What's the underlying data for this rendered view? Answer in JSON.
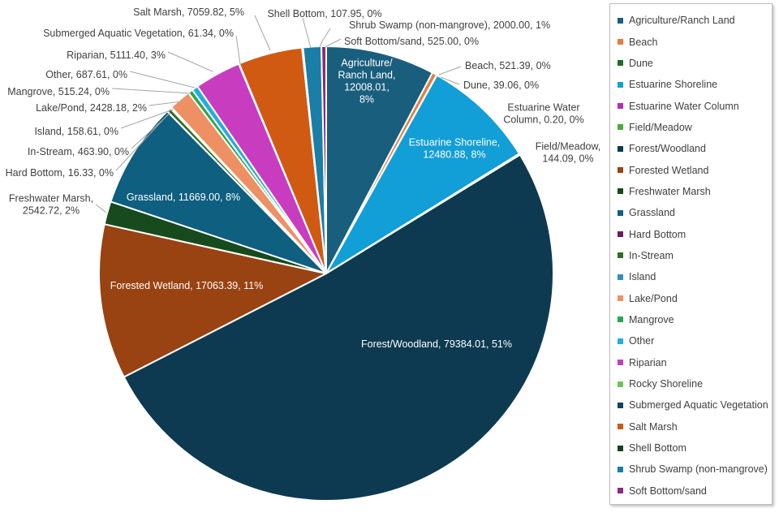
{
  "chart_data": {
    "type": "pie",
    "title": "",
    "legend_position": "right",
    "slices": [
      {
        "name": "Agriculture/Ranch Land",
        "value": 12008.01,
        "percent": "8%",
        "color": "#1a5e7e",
        "label_lines": [
          "Agriculture/",
          "Ranch Land,",
          "12008.01,",
          "8%"
        ]
      },
      {
        "name": "Beach",
        "value": 521.39,
        "percent": "0%",
        "color": "#e47e3e",
        "label_lines": [
          "Beach, 521.39, 0%"
        ]
      },
      {
        "name": "Dune",
        "value": 39.06,
        "percent": "0%",
        "color": "#1e6b2a",
        "label_lines": [
          "Dune, 39.06, 0%"
        ]
      },
      {
        "name": "Estuarine Shoreline",
        "value": 12480.88,
        "percent": "8%",
        "color": "#129ed6",
        "label_lines": [
          "Estuarine Shoreline,",
          "12480.88, 8%"
        ]
      },
      {
        "name": "Estuarine Water Column",
        "value": 0.2,
        "percent": "0%",
        "color": "#b42eb0",
        "label_lines": [
          "Estuarine Water",
          "Column, 0.20, 0%"
        ]
      },
      {
        "name": "Field/Meadow",
        "value": 144.09,
        "percent": "0%",
        "color": "#4eaa3a",
        "label_lines": [
          "Field/Meadow,",
          "144.09, 0%"
        ]
      },
      {
        "name": "Forest/Woodland",
        "value": 79384.01,
        "percent": "51%",
        "color": "#0d3a50",
        "label_lines": [
          "Forest/Woodland, 79384.01, 51%"
        ]
      },
      {
        "name": "Forested Wetland",
        "value": 17063.39,
        "percent": "11%",
        "color": "#994212",
        "label_lines": [
          "Forested Wetland, 17063.39, 11%"
        ]
      },
      {
        "name": "Freshwater Marsh",
        "value": 2542.72,
        "percent": "2%",
        "color": "#174a1c",
        "label_lines": [
          "Freshwater Marsh,",
          "2542.72, 2%"
        ]
      },
      {
        "name": "Grassland",
        "value": 11669.0,
        "percent": "8%",
        "color": "#0e5f80",
        "label_lines": [
          "Grassland, 11669.00, 8%"
        ]
      },
      {
        "name": "Hard Bottom",
        "value": 16.33,
        "percent": "0%",
        "color": "#6e1a5a",
        "label_lines": [
          "Hard Bottom, 16.33, 0%"
        ]
      },
      {
        "name": "In-Stream",
        "value": 463.9,
        "percent": "0%",
        "color": "#2f6e22",
        "label_lines": [
          "In-Stream, 463.90, 0%"
        ]
      },
      {
        "name": "Island",
        "value": 158.61,
        "percent": "0%",
        "color": "#2f8fbf",
        "label_lines": [
          "Island, 158.61, 0%"
        ]
      },
      {
        "name": "Lake/Pond",
        "value": 2428.18,
        "percent": "2%",
        "color": "#ee9063",
        "label_lines": [
          "Lake/Pond, 2428.18, 2%"
        ]
      },
      {
        "name": "Mangrove",
        "value": 515.24,
        "percent": "0%",
        "color": "#2aa54a",
        "label_lines": [
          "Mangrove, 515.24, 0%"
        ]
      },
      {
        "name": "Other",
        "value": 687.61,
        "percent": "0%",
        "color": "#22ade0",
        "label_lines": [
          "Other, 687.61, 0%"
        ]
      },
      {
        "name": "Riparian",
        "value": 5111.4,
        "percent": "3%",
        "color": "#c83dbf",
        "label_lines": [
          "Riparian, 5111.40, 3%"
        ]
      },
      {
        "name": "Rocky Shoreline",
        "value": 0.0,
        "percent": "",
        "color": "#6cc25a",
        "label_lines": []
      },
      {
        "name": "Submerged Aquatic Vegetation",
        "value": 61.34,
        "percent": "0%",
        "color": "#0f4560",
        "label_lines": [
          "Submerged Aquatic Vegetation, 61.34, 0%"
        ]
      },
      {
        "name": "Salt Marsh",
        "value": 7059.82,
        "percent": "5%",
        "color": "#d05a12",
        "label_lines": [
          "Salt Marsh, 7059.82, 5%"
        ]
      },
      {
        "name": "Shell Bottom",
        "value": 107.95,
        "percent": "0%",
        "color": "#16401e",
        "label_lines": [
          "Shell Bottom, 107.95, 0%"
        ]
      },
      {
        "name": "Shrub Swamp (non-mangrove)",
        "value": 2000.0,
        "percent": "1%",
        "color": "#1a7ea6",
        "label_lines": [
          "Shrub Swamp (non-mangrove), 2000.00, 1%"
        ]
      },
      {
        "name": "Soft Bottom/sand",
        "value": 525.0,
        "percent": "0%",
        "color": "#8a2a7e",
        "label_lines": [
          "Soft Bottom/sand, 525.00, 0%"
        ]
      }
    ]
  }
}
